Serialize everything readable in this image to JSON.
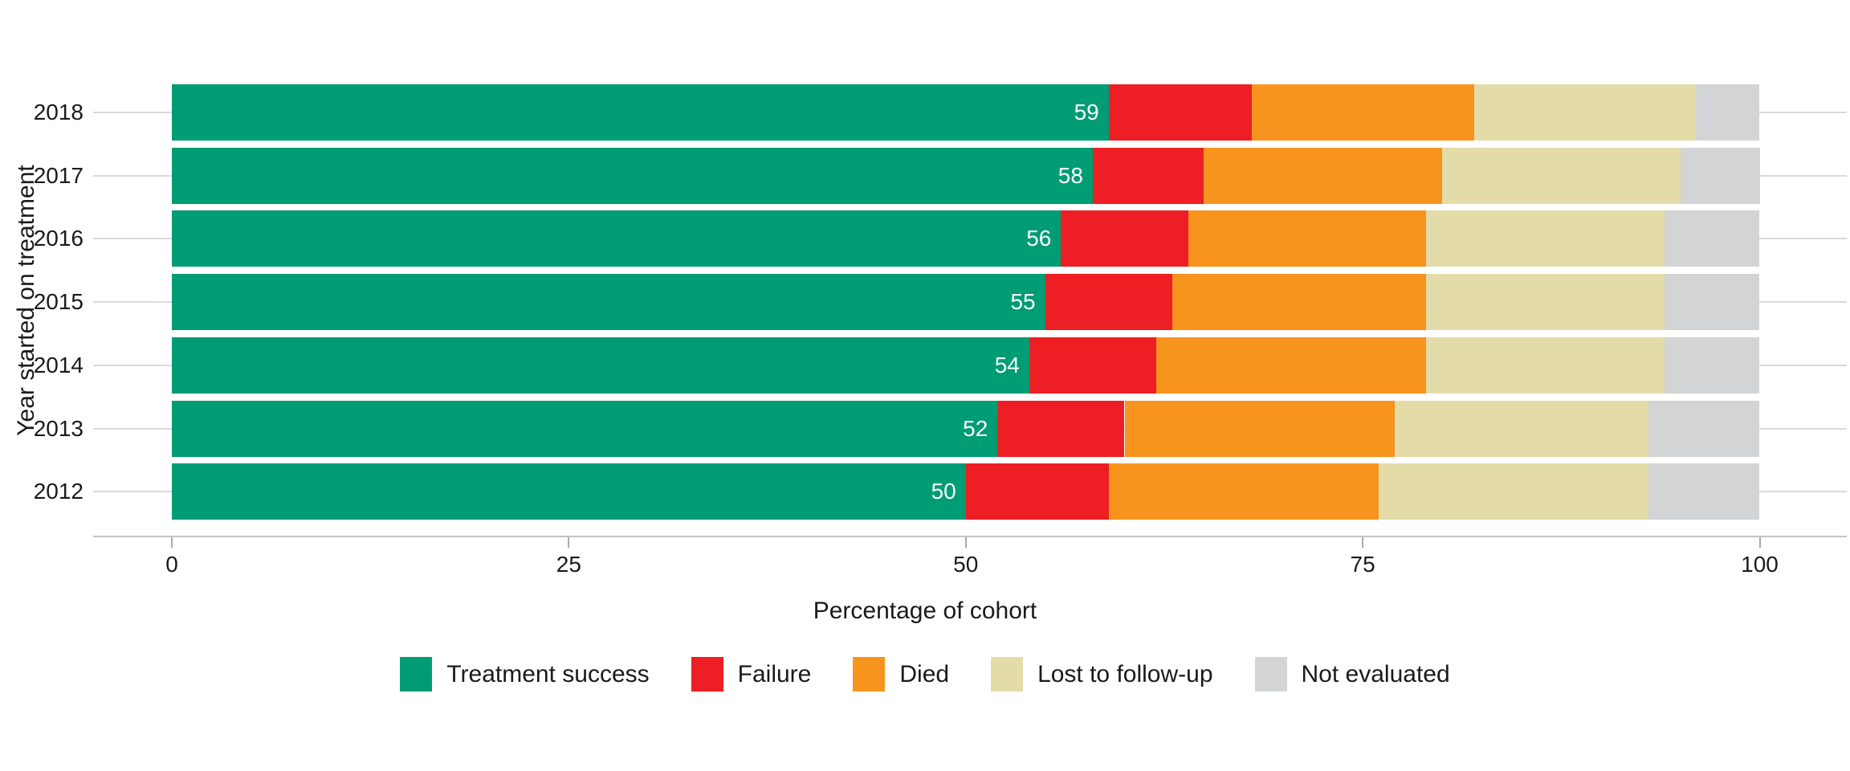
{
  "chart_data": {
    "type": "bar",
    "orientation": "horizontal",
    "stacked": true,
    "xlabel": "Percentage of cohort",
    "ylabel": "Year started on treatment",
    "categories": [
      "2018",
      "2017",
      "2016",
      "2015",
      "2014",
      "2013",
      "2012"
    ],
    "x_ticks": [
      "0",
      "25",
      "50",
      "75",
      "100"
    ],
    "x_tick_values": [
      0,
      25,
      50,
      75,
      100
    ],
    "xlim": [
      0,
      100
    ],
    "grid": "horizontal-category-lines",
    "legend_position": "bottom",
    "series": [
      {
        "name": "Treatment success",
        "color": "#009c74",
        "values": [
          59,
          58,
          56,
          55,
          54,
          52,
          50
        ]
      },
      {
        "name": "Failure",
        "color": "#ed1f24",
        "values": [
          9,
          7,
          8,
          8,
          8,
          8,
          9
        ]
      },
      {
        "name": "Died",
        "color": "#f7941e",
        "values": [
          14,
          15,
          15,
          16,
          17,
          17,
          17
        ]
      },
      {
        "name": "Lost to follow-up",
        "color": "#e3dca9",
        "values": [
          14,
          15,
          15,
          15,
          15,
          16,
          17
        ]
      },
      {
        "name": "Not evaluated",
        "color": "#d2d4d5",
        "values": [
          4,
          5,
          6,
          6,
          6,
          7,
          7
        ]
      }
    ],
    "bar_value_labels": {
      "series": "Treatment success",
      "labels": [
        "59",
        "58",
        "56",
        "55",
        "54",
        "52",
        "50"
      ],
      "color": "#ffffff"
    },
    "colors": {
      "background": "#ffffff",
      "gridline": "#dadada",
      "axis_line": "#c3c3c3",
      "tick_mark": "#a9a9a9",
      "text": "#1a1a1a"
    }
  }
}
